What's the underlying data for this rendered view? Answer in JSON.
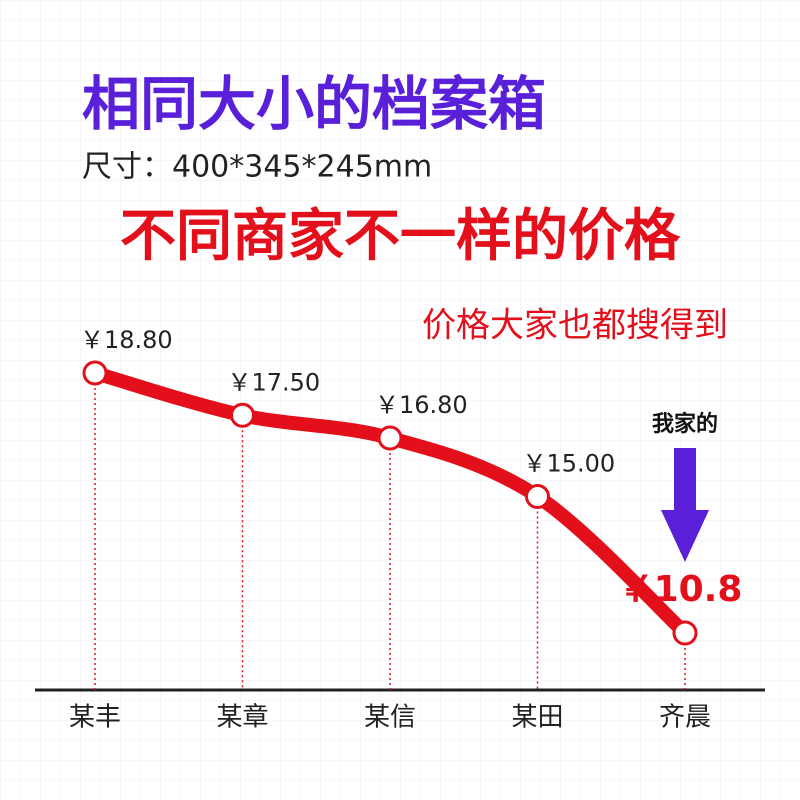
{
  "chart_data": {
    "type": "line",
    "title": "相同大小的档案箱",
    "subtitle": "尺寸：400*345*245mm",
    "headline": "不同商家不一样的价格",
    "note": "价格大家也都搜得到",
    "annotation": "我家的",
    "categories": [
      "某丰",
      "某章",
      "某信",
      "某田",
      "齐晨"
    ],
    "values": [
      18.8,
      17.5,
      16.8,
      15.0,
      10.8
    ],
    "value_labels": [
      "￥18.80",
      "￥17.50",
      "￥16.80",
      "￥15.00",
      "￥10.8"
    ],
    "color": "#e3101b",
    "title_color": "#5a1fd8",
    "highlight_color": "#e3101b",
    "arrow_color": "#5a1fd8"
  }
}
